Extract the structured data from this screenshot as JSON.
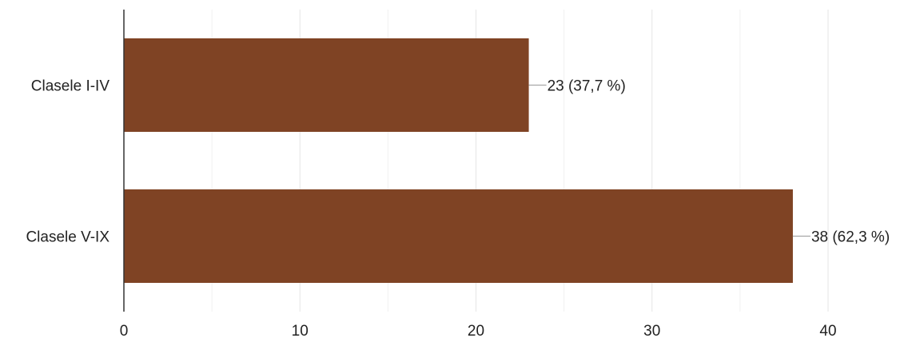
{
  "chart_data": {
    "type": "bar",
    "orientation": "horizontal",
    "categories": [
      "Clasele I-IV",
      "Clasele V-IX"
    ],
    "values": [
      23,
      38
    ],
    "data_labels": [
      "23 (37,7 %)",
      "38 (62,3 %)"
    ],
    "xlim": [
      0,
      40
    ],
    "x_ticks": [
      0,
      10,
      20,
      30,
      40
    ],
    "x_tick_labels": [
      "0",
      "10",
      "20",
      "30",
      "40"
    ],
    "minor_gridlines": true,
    "bar_color": "#7f4324",
    "grid_color": "#e6e6e6",
    "axis_color": "#333333",
    "leader_color": "#999999",
    "title": "",
    "xlabel": "",
    "ylabel": ""
  }
}
